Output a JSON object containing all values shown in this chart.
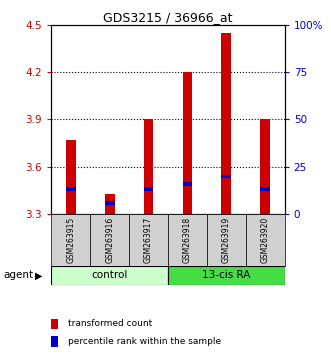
{
  "title": "GDS3215 / 36966_at",
  "samples": [
    "GSM263915",
    "GSM263916",
    "GSM263917",
    "GSM263918",
    "GSM263919",
    "GSM263920"
  ],
  "red_values": [
    3.77,
    3.43,
    3.9,
    4.2,
    4.45,
    3.9
  ],
  "blue_values": [
    3.46,
    3.37,
    3.46,
    3.49,
    3.54,
    3.46
  ],
  "y_min": 3.3,
  "y_max": 4.5,
  "y_ticks_left": [
    3.3,
    3.6,
    3.9,
    4.2,
    4.5
  ],
  "y_ticks_right": [
    0,
    25,
    50,
    75,
    100
  ],
  "y_right_labels": [
    "0",
    "25",
    "50",
    "75",
    "100%"
  ],
  "bar_color": "#cc0000",
  "blue_color": "#0000cc",
  "control_color": "#ccffcc",
  "ra_color": "#44dd44",
  "label_box_color": "#d0d0d0",
  "left_axis_color": "#cc0000",
  "right_axis_color": "#0000cc",
  "bar_width": 0.25,
  "blue_bar_height": 0.022,
  "legend_red": "transformed count",
  "legend_blue": "percentile rank within the sample",
  "agent_label": "agent",
  "group_label_control": "control",
  "group_label_ra": "13-cis RA",
  "title_fontsize": 9,
  "tick_fontsize": 7.5,
  "label_fontsize": 5.5,
  "group_fontsize": 7.5,
  "legend_fontsize": 6.5
}
